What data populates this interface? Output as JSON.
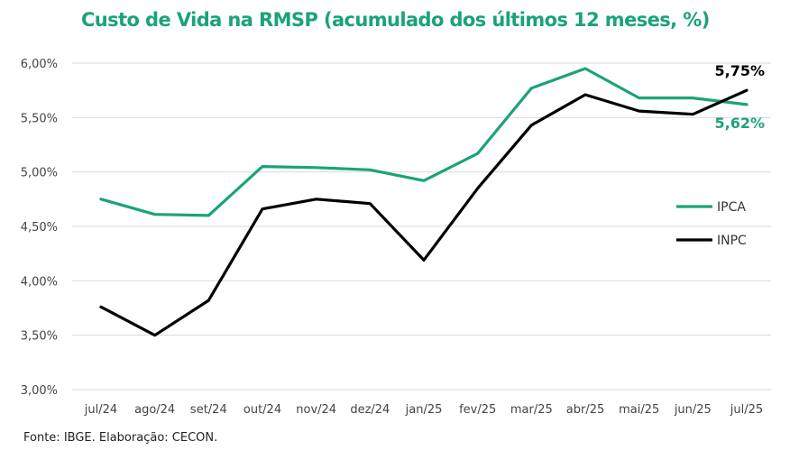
{
  "title": "Custo de Vida na RMSP (acumulado dos últimos 12 meses, %)",
  "source": "Fonte: IBGE. Elaboração: CECON.",
  "chart_data": {
    "type": "line",
    "categories": [
      "jul/24",
      "ago/24",
      "set/24",
      "out/24",
      "nov/24",
      "dez/24",
      "jan/25",
      "fev/25",
      "mar/25",
      "abr/25",
      "mai/25",
      "jun/25",
      "jul/25"
    ],
    "series": [
      {
        "name": "IPCA",
        "color": "#1aa37a",
        "values": [
          4.75,
          4.61,
          4.6,
          5.05,
          5.04,
          5.02,
          4.92,
          5.17,
          5.77,
          5.95,
          5.68,
          5.68,
          5.62
        ]
      },
      {
        "name": "INPC",
        "color": "#000000",
        "values": [
          3.76,
          3.5,
          3.82,
          4.66,
          4.75,
          4.71,
          4.19,
          4.85,
          5.43,
          5.71,
          5.56,
          5.53,
          5.75
        ]
      }
    ],
    "yticks": [
      "3,00%",
      "3,50%",
      "4,00%",
      "4,50%",
      "5,00%",
      "5,50%",
      "6,00%"
    ],
    "ylim": [
      3.0,
      6.0
    ],
    "end_labels": {
      "INPC": "5,75%",
      "IPCA": "5,62%"
    },
    "grid": "horizontal",
    "legend_position": "right"
  }
}
